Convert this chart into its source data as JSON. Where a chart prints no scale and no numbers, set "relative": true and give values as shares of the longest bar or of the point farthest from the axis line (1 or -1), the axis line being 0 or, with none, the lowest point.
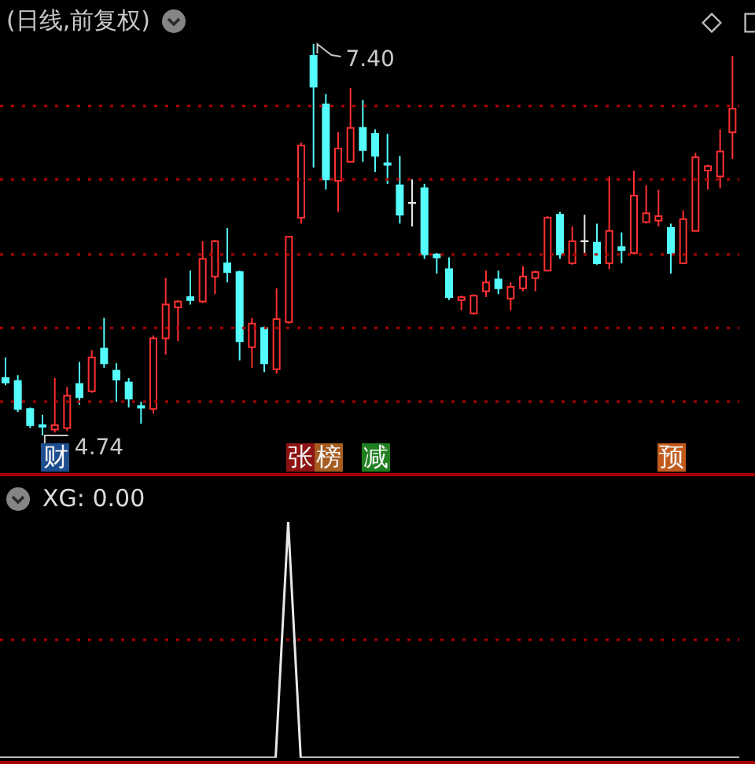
{
  "chart_data": [
    {
      "type": "candlestick",
      "title": "(日线,前复权)",
      "tick_labels": false,
      "categories": [
        null,
        null,
        null,
        null,
        null,
        null,
        null,
        null,
        null,
        null,
        null,
        null,
        null,
        null,
        null,
        null,
        null,
        null,
        null,
        null,
        null,
        null,
        null,
        null,
        null,
        null,
        null,
        null,
        null,
        null,
        null,
        null,
        null,
        null,
        null,
        null,
        null,
        null,
        null,
        null,
        null,
        null,
        null,
        null,
        null,
        null,
        null,
        null,
        null,
        null,
        null,
        null,
        null,
        null,
        null,
        null,
        null,
        null,
        null,
        null
      ],
      "ohlc": [
        [
          5.13,
          5.27,
          5.08,
          5.1
        ],
        [
          5.11,
          5.15,
          4.9,
          4.92
        ],
        [
          4.92,
          4.93,
          4.79,
          4.81
        ],
        [
          4.81,
          4.88,
          4.74,
          4.8
        ],
        [
          4.78,
          5.13,
          4.76,
          4.81
        ],
        [
          4.79,
          5.07,
          4.77,
          5.01
        ],
        [
          5.09,
          5.24,
          4.95,
          5.0
        ],
        [
          5.04,
          5.32,
          5.03,
          5.27
        ],
        [
          5.33,
          5.54,
          5.2,
          5.23
        ],
        [
          5.18,
          5.23,
          4.97,
          5.12
        ],
        [
          5.1,
          5.13,
          4.93,
          4.99
        ],
        [
          4.94,
          4.97,
          4.82,
          4.93
        ],
        [
          4.92,
          5.42,
          4.89,
          5.4
        ],
        [
          5.4,
          5.81,
          5.29,
          5.63
        ],
        [
          5.61,
          5.66,
          5.38,
          5.65
        ],
        [
          5.68,
          5.86,
          5.63,
          5.66
        ],
        [
          5.65,
          6.06,
          5.64,
          5.94
        ],
        [
          5.82,
          6.07,
          5.7,
          6.06
        ],
        [
          5.91,
          6.15,
          5.78,
          5.85
        ],
        [
          5.85,
          5.86,
          5.25,
          5.38
        ],
        [
          5.34,
          5.54,
          5.2,
          5.5
        ],
        [
          5.47,
          5.48,
          5.17,
          5.23
        ],
        [
          5.19,
          5.74,
          5.16,
          5.53
        ],
        [
          5.51,
          6.09,
          5.5,
          6.09
        ],
        [
          6.22,
          6.73,
          6.18,
          6.71
        ],
        [
          7.32,
          7.4,
          6.56,
          7.11
        ],
        [
          6.99,
          7.06,
          6.41,
          6.48
        ],
        [
          6.47,
          6.8,
          6.26,
          6.69
        ],
        [
          6.6,
          7.1,
          6.6,
          6.83
        ],
        [
          6.83,
          7.02,
          6.6,
          6.68
        ],
        [
          6.79,
          6.82,
          6.53,
          6.64
        ],
        [
          6.59,
          6.79,
          6.45,
          6.58
        ],
        [
          6.44,
          6.64,
          6.18,
          6.24
        ],
        [
          6.32,
          6.48,
          6.16,
          6.32
        ],
        [
          6.42,
          6.45,
          5.94,
          5.97
        ],
        [
          5.97,
          5.98,
          5.84,
          5.95
        ],
        [
          5.87,
          5.95,
          5.66,
          5.68
        ],
        [
          5.66,
          5.69,
          5.59,
          5.68
        ],
        [
          5.57,
          5.7,
          5.56,
          5.69
        ],
        [
          5.72,
          5.86,
          5.68,
          5.78
        ],
        [
          5.8,
          5.86,
          5.7,
          5.74
        ],
        [
          5.67,
          5.78,
          5.59,
          5.75
        ],
        [
          5.74,
          5.89,
          5.72,
          5.82
        ],
        [
          5.81,
          5.86,
          5.72,
          5.85
        ],
        [
          5.86,
          6.23,
          5.86,
          6.22
        ],
        [
          6.24,
          6.26,
          5.94,
          5.97
        ],
        [
          5.91,
          6.16,
          5.9,
          6.06
        ],
        [
          6.06,
          6.24,
          5.98,
          6.06
        ],
        [
          6.05,
          6.18,
          5.9,
          5.91
        ],
        [
          5.91,
          6.5,
          5.87,
          6.13
        ],
        [
          6.02,
          6.12,
          5.91,
          6.0
        ],
        [
          5.98,
          6.54,
          5.97,
          6.37
        ],
        [
          6.19,
          6.44,
          6.18,
          6.25
        ],
        [
          6.2,
          6.41,
          6.16,
          6.23
        ],
        [
          6.15,
          6.18,
          5.84,
          5.98
        ],
        [
          5.91,
          6.27,
          5.91,
          6.21
        ],
        [
          6.13,
          6.66,
          6.13,
          6.63
        ],
        [
          6.54,
          6.58,
          6.41,
          6.57
        ],
        [
          6.5,
          6.82,
          6.42,
          6.67
        ],
        [
          6.8,
          7.32,
          6.62,
          6.96
        ]
      ],
      "colors": [
        "#54fcfc",
        "#54fcfc",
        "#54fcfc",
        "#54fcfc",
        "#ff3030",
        "#ff3030",
        "#54fcfc",
        "#ff3030",
        "#54fcfc",
        "#54fcfc",
        "#54fcfc",
        "#54fcfc",
        "#ff3030",
        "#ff3030",
        "#ff3030",
        "#54fcfc",
        "#ff3030",
        "#ff3030",
        "#54fcfc",
        "#54fcfc",
        "#ff3030",
        "#54fcfc",
        "#ff3030",
        "#ff3030",
        "#ff3030",
        "#54fcfc",
        "#54fcfc",
        "#ff3030",
        "#ff3030",
        "#54fcfc",
        "#54fcfc",
        "#54fcfc",
        "#54fcfc",
        "#e6e6e6",
        "#54fcfc",
        "#54fcfc",
        "#54fcfc",
        "#ff3030",
        "#ff3030",
        "#ff3030",
        "#54fcfc",
        "#ff3030",
        "#ff3030",
        "#ff3030",
        "#ff3030",
        "#54fcfc",
        "#ff3030",
        "#e6e6e6",
        "#54fcfc",
        "#ff3030",
        "#54fcfc",
        "#ff3030",
        "#ff3030",
        "#ff3030",
        "#54fcfc",
        "#ff3030",
        "#ff3030",
        "#ff3030",
        "#ff3030",
        "#ff3030"
      ],
      "ref_lines": [
        {
          "axis": "y",
          "value": 6.98,
          "color": "#b00000",
          "line_style": "dotted"
        },
        {
          "axis": "y",
          "value": 6.48,
          "color": "#b00000",
          "line_style": "dotted"
        },
        {
          "axis": "y",
          "value": 5.97,
          "color": "#b00000",
          "line_style": "dotted"
        },
        {
          "axis": "y",
          "value": 5.47,
          "color": "#b00000",
          "line_style": "dotted"
        },
        {
          "axis": "y",
          "value": 4.97,
          "color": "#b00000",
          "line_style": "dotted"
        }
      ],
      "annotations": [
        "7.40",
        "4.74",
        "财",
        "张榜",
        "减",
        "预"
      ]
    },
    {
      "type": "line",
      "title": "XG: 0.00",
      "relative": true,
      "tick_labels": false,
      "categories": [
        null,
        null,
        null,
        null,
        null,
        null,
        null,
        null,
        null,
        null,
        null,
        null,
        null,
        null,
        null,
        null,
        null,
        null,
        null,
        null,
        null,
        null,
        null,
        null,
        null,
        null,
        null,
        null,
        null,
        null,
        null,
        null,
        null,
        null,
        null,
        null,
        null,
        null,
        null,
        null,
        null,
        null,
        null,
        null,
        null,
        null,
        null,
        null,
        null,
        null,
        null,
        null,
        null,
        null,
        null,
        null,
        null,
        null,
        null,
        null
      ],
      "series": [
        {
          "color": "#e8e8e8",
          "values": [
            0,
            0,
            0,
            0,
            0,
            0,
            0,
            0,
            0,
            0,
            0,
            0,
            0,
            0,
            0,
            0,
            0,
            0,
            0,
            0,
            0,
            0,
            0,
            1,
            0,
            0,
            0,
            0,
            0,
            0,
            0,
            0,
            0,
            0,
            0,
            0,
            0,
            0,
            0,
            0,
            0,
            0,
            0,
            0,
            0,
            0,
            0,
            0,
            0,
            0,
            0,
            0,
            0,
            0,
            0,
            0,
            0,
            0,
            0,
            0
          ]
        }
      ],
      "ref_lines": [
        {
          "axis": "y",
          "value": 0.5,
          "color": "#b00000",
          "line_style": "dotted"
        }
      ]
    }
  ]
}
